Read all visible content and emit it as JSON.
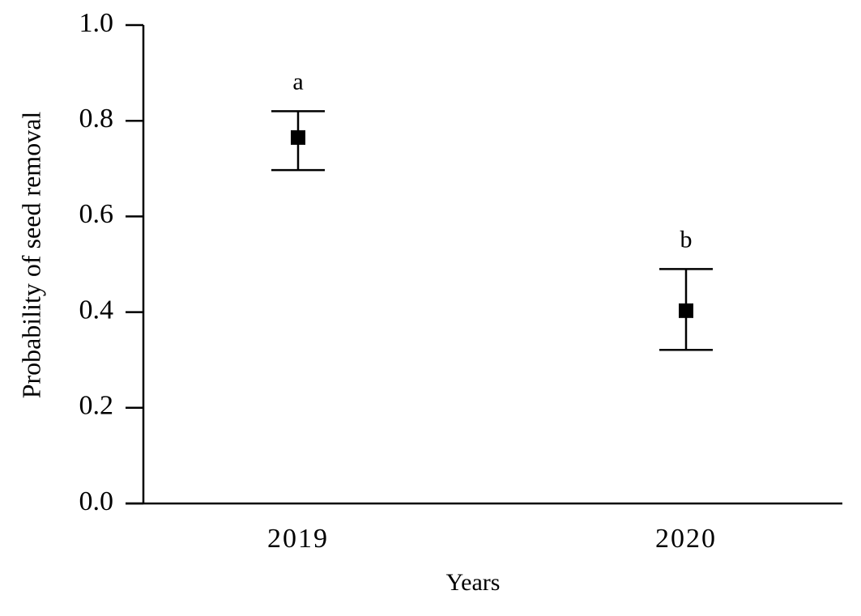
{
  "chart_data": {
    "type": "errorbar",
    "x_label": "Years",
    "y_label": "Probability of seed removal",
    "categories": [
      "2019",
      "2020"
    ],
    "values": [
      0.765,
      0.403
    ],
    "lower": [
      0.697,
      0.321
    ],
    "upper": [
      0.82,
      0.49
    ],
    "annotations": [
      "a",
      "b"
    ],
    "color": "#000000",
    "ylim": [
      0,
      1
    ],
    "yticks": [
      {
        "value": 0,
        "label": "0.0"
      },
      0.2,
      0.4,
      0.6,
      0.8,
      {
        "value": 1,
        "label": "1.0"
      }
    ]
  }
}
